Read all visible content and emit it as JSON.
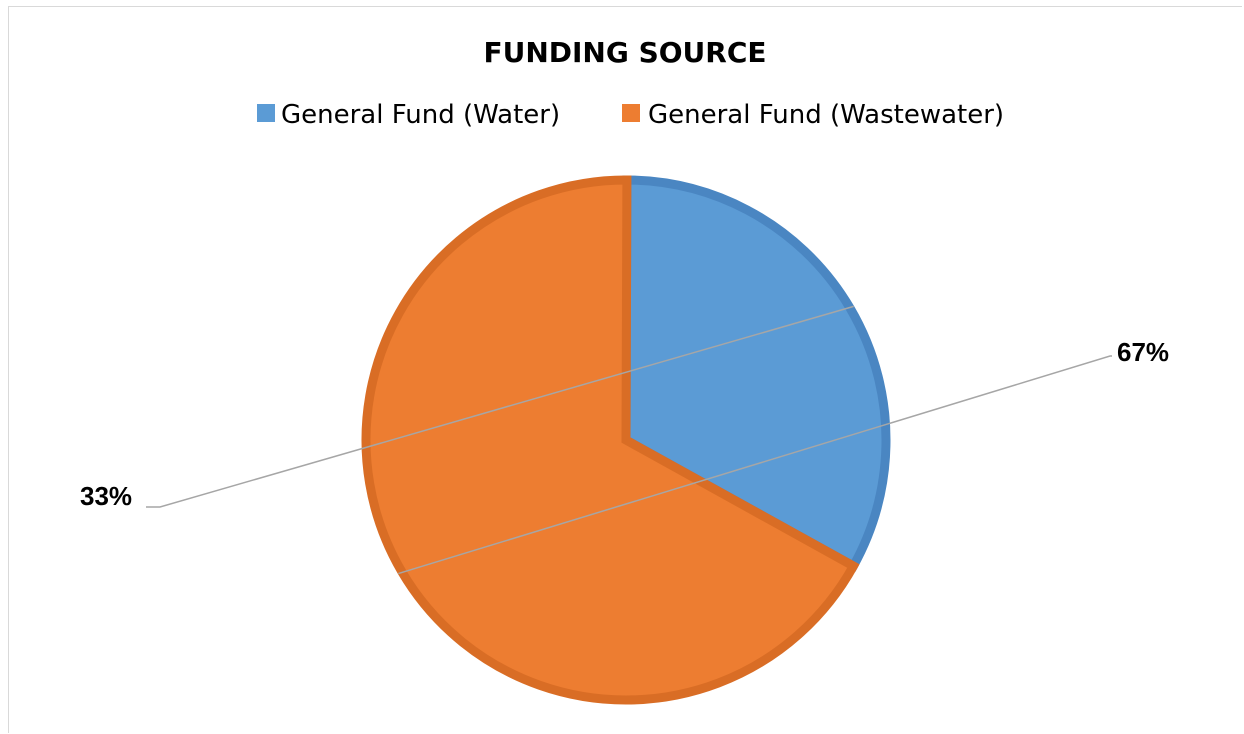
{
  "chart_data": {
    "type": "pie",
    "title": "FUNDING SOURCE",
    "categories": [
      "General Fund (Water)",
      "General Fund (Wastewater)"
    ],
    "values": [
      33,
      67
    ],
    "data_labels": [
      "33%",
      "67%"
    ],
    "colors": [
      "#5b9bd5",
      "#ed7d31"
    ],
    "edge_colors": [
      "#4a86c2",
      "#d96d25"
    ],
    "legend_position": "top",
    "start_angle_deg": -29,
    "direction": "counterclockwise",
    "grid": false
  }
}
